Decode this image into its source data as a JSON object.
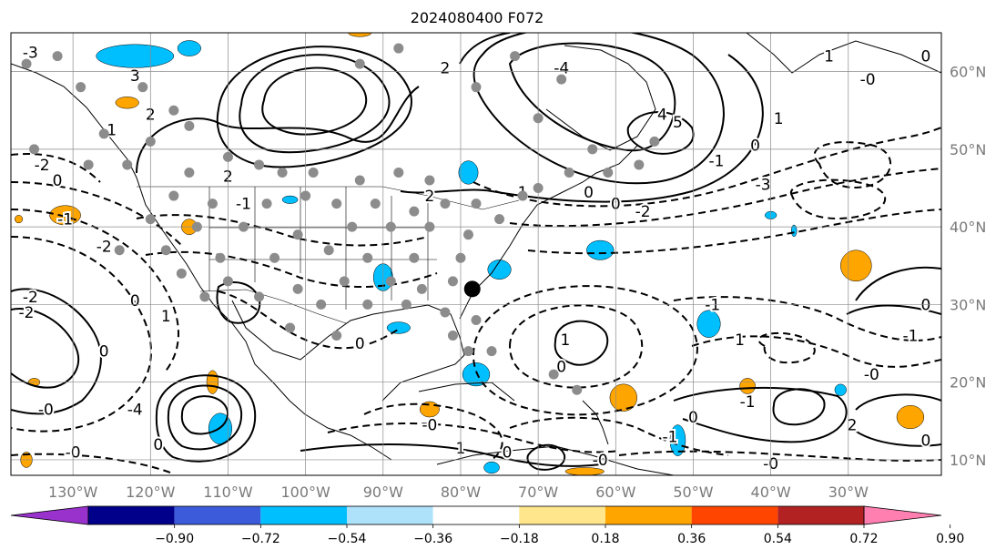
{
  "title": "2024080400 F072",
  "map": {
    "lon_range": [
      -138,
      -18
    ],
    "lat_range": [
      8,
      65
    ],
    "lon_ticks": [
      {
        "value": -130,
        "label": "130°W"
      },
      {
        "value": -120,
        "label": "120°W"
      },
      {
        "value": -110,
        "label": "110°W"
      },
      {
        "value": -100,
        "label": "100°W"
      },
      {
        "value": -90,
        "label": "90°W"
      },
      {
        "value": -80,
        "label": "80°W"
      },
      {
        "value": -70,
        "label": "70°W"
      },
      {
        "value": -60,
        "label": "60°W"
      },
      {
        "value": -50,
        "label": "50°W"
      },
      {
        "value": -40,
        "label": "40°W"
      },
      {
        "value": -30,
        "label": "30°W"
      }
    ],
    "lat_ticks": [
      {
        "value": 10,
        "label": "10°N"
      },
      {
        "value": 20,
        "label": "20°N"
      },
      {
        "value": 30,
        "label": "30°N"
      },
      {
        "value": 40,
        "label": "40°N"
      },
      {
        "value": 50,
        "label": "50°N"
      },
      {
        "value": 60,
        "label": "60°N"
      }
    ],
    "grid": true,
    "contour_labels": [
      {
        "text": "-3",
        "lon": -135.5,
        "lat": 62.5
      },
      {
        "text": "3",
        "lon": -122,
        "lat": 59.5
      },
      {
        "text": "2",
        "lon": -120,
        "lat": 54.5
      },
      {
        "text": "1",
        "lon": -125,
        "lat": 52.5
      },
      {
        "text": "-2",
        "lon": -134,
        "lat": 48
      },
      {
        "text": "0",
        "lon": -132,
        "lat": 46
      },
      {
        "text": "-1",
        "lon": -131,
        "lat": 41
      },
      {
        "text": "-2",
        "lon": -126,
        "lat": 37.5
      },
      {
        "text": "2",
        "lon": -110,
        "lat": 46.5
      },
      {
        "text": "-1",
        "lon": -108,
        "lat": 43
      },
      {
        "text": "0",
        "lon": -122,
        "lat": 30.5
      },
      {
        "text": "1",
        "lon": -118,
        "lat": 28.5
      },
      {
        "text": "-2",
        "lon": -135.5,
        "lat": 31
      },
      {
        "text": "-2",
        "lon": -136,
        "lat": 29
      },
      {
        "text": "0",
        "lon": -126,
        "lat": 24
      },
      {
        "text": "-4",
        "lon": -122,
        "lat": 16.5
      },
      {
        "text": "0",
        "lon": -119,
        "lat": 12
      },
      {
        "text": "-0",
        "lon": -133.5,
        "lat": 16.5
      },
      {
        "text": "-0",
        "lon": -130,
        "lat": 11
      },
      {
        "text": "0",
        "lon": -93,
        "lat": 25
      },
      {
        "text": "2",
        "lon": -82,
        "lat": 60.5
      },
      {
        "text": "-4",
        "lon": -67,
        "lat": 60.5
      },
      {
        "text": "4",
        "lon": -54,
        "lat": 54.5
      },
      {
        "text": "5",
        "lon": -52,
        "lat": 53.5
      },
      {
        "text": "2",
        "lon": -84,
        "lat": 44
      },
      {
        "text": "1",
        "lon": -72,
        "lat": 44.5
      },
      {
        "text": "0",
        "lon": -63.5,
        "lat": 44.5
      },
      {
        "text": "0",
        "lon": -60,
        "lat": 43
      },
      {
        "text": "-2",
        "lon": -56.5,
        "lat": 42
      },
      {
        "text": "1",
        "lon": -39,
        "lat": 54
      },
      {
        "text": "0",
        "lon": -42,
        "lat": 50.5
      },
      {
        "text": "-1",
        "lon": -47,
        "lat": 48.5
      },
      {
        "text": "-3",
        "lon": -41,
        "lat": 45.5
      },
      {
        "text": "1",
        "lon": -32.5,
        "lat": 62
      },
      {
        "text": "-0",
        "lon": -27.5,
        "lat": 59
      },
      {
        "text": "0",
        "lon": -20,
        "lat": 62
      },
      {
        "text": "1",
        "lon": -66.5,
        "lat": 25.5
      },
      {
        "text": "0",
        "lon": -67,
        "lat": 22
      },
      {
        "text": "-0",
        "lon": -84,
        "lat": 14.5
      },
      {
        "text": "1",
        "lon": -80,
        "lat": 11.5
      },
      {
        "text": "0",
        "lon": -74,
        "lat": 11
      },
      {
        "text": "-0",
        "lon": -62,
        "lat": 10
      },
      {
        "text": "-1",
        "lon": -53,
        "lat": 13
      },
      {
        "text": "0",
        "lon": -50,
        "lat": 15.5
      },
      {
        "text": "-1",
        "lon": -43,
        "lat": 17.5
      },
      {
        "text": "-0",
        "lon": -40,
        "lat": 9.5
      },
      {
        "text": "-1",
        "lon": -47.5,
        "lat": 30
      },
      {
        "text": "1",
        "lon": -44,
        "lat": 25.5
      },
      {
        "text": "-1",
        "lon": -22,
        "lat": 26
      },
      {
        "text": "-0",
        "lon": -27,
        "lat": 21
      },
      {
        "text": "0",
        "lon": -20,
        "lat": 30
      },
      {
        "text": "2",
        "lon": -29.5,
        "lat": 14.5
      },
      {
        "text": "0",
        "lon": -20,
        "lat": 12.5
      }
    ],
    "station_markers": {
      "gray": [
        [
          -136,
          61
        ],
        [
          -132,
          62
        ],
        [
          -129,
          58
        ],
        [
          -121,
          58
        ],
        [
          -117,
          55
        ],
        [
          -115,
          53
        ],
        [
          -120,
          51
        ],
        [
          -126,
          52
        ],
        [
          -135,
          50
        ],
        [
          -128,
          48
        ],
        [
          -123,
          48
        ],
        [
          -115,
          47
        ],
        [
          -110,
          49
        ],
        [
          -106,
          48
        ],
        [
          -103,
          47
        ],
        [
          -99,
          47
        ],
        [
          -93,
          46
        ],
        [
          -88,
          47
        ],
        [
          -84,
          46
        ],
        [
          -117,
          44
        ],
        [
          -112,
          43
        ],
        [
          -105,
          43
        ],
        [
          -100,
          44
        ],
        [
          -96,
          43
        ],
        [
          -91,
          43
        ],
        [
          -86,
          42
        ],
        [
          -82,
          43
        ],
        [
          -78,
          43
        ],
        [
          -72,
          44
        ],
        [
          -120,
          41
        ],
        [
          -114,
          40
        ],
        [
          -108,
          40
        ],
        [
          -101,
          39
        ],
        [
          -94,
          40
        ],
        [
          -89,
          40
        ],
        [
          -84,
          40
        ],
        [
          -79,
          39
        ],
        [
          -75,
          41
        ],
        [
          -124,
          37
        ],
        [
          -118,
          37
        ],
        [
          -111,
          36
        ],
        [
          -104,
          36
        ],
        [
          -97,
          37
        ],
        [
          -92,
          36
        ],
        [
          -86,
          36
        ],
        [
          -80,
          36
        ],
        [
          -116,
          34
        ],
        [
          -110,
          33
        ],
        [
          -101,
          32
        ],
        [
          -95,
          33
        ],
        [
          -89,
          33
        ],
        [
          -85,
          32
        ],
        [
          -81,
          33
        ],
        [
          -113,
          31
        ],
        [
          -106,
          31
        ],
        [
          -98,
          30
        ],
        [
          -92,
          30
        ],
        [
          -87,
          30
        ],
        [
          -82,
          29
        ],
        [
          -78,
          28
        ],
        [
          -102,
          27
        ],
        [
          -96,
          26
        ],
        [
          -81,
          26
        ],
        [
          -79,
          24
        ],
        [
          -76,
          24
        ],
        [
          -68,
          21
        ],
        [
          -65,
          19
        ],
        [
          -70,
          45
        ],
        [
          -66,
          47
        ],
        [
          -61,
          47
        ],
        [
          -57,
          48
        ],
        [
          -55,
          51
        ],
        [
          -63,
          50
        ],
        [
          -70,
          54
        ],
        [
          -78,
          58
        ],
        [
          -73,
          62
        ],
        [
          -67,
          59
        ],
        [
          -88,
          63
        ],
        [
          -93,
          61
        ]
      ],
      "black": [
        [
          -78.5,
          32
        ]
      ]
    },
    "anomaly_regions": [
      {
        "color": "#00bfff",
        "lon": -115,
        "lat": 63,
        "w": 3,
        "h": 2
      },
      {
        "color": "#00bfff",
        "lon": -122,
        "lat": 62,
        "w": 10,
        "h": 3
      },
      {
        "color": "#ffa500",
        "lon": -123,
        "lat": 56,
        "w": 3,
        "h": 1.5
      },
      {
        "color": "#ffa500",
        "lon": -93,
        "lat": 65,
        "w": 3,
        "h": 1
      },
      {
        "color": "#ffa500",
        "lon": -131,
        "lat": 41.5,
        "w": 4,
        "h": 2.5
      },
      {
        "color": "#ffa500",
        "lon": -137,
        "lat": 41,
        "w": 1,
        "h": 1
      },
      {
        "color": "#ffa500",
        "lon": -115,
        "lat": 40,
        "w": 2,
        "h": 2
      },
      {
        "color": "#00bfff",
        "lon": -102,
        "lat": 43.5,
        "w": 2,
        "h": 1
      },
      {
        "color": "#00bfff",
        "lon": -79,
        "lat": 47,
        "w": 2.5,
        "h": 3
      },
      {
        "color": "#00bfff",
        "lon": -90,
        "lat": 33.5,
        "w": 2.5,
        "h": 3.5
      },
      {
        "color": "#00bfff",
        "lon": -88,
        "lat": 27,
        "w": 3,
        "h": 1.5
      },
      {
        "color": "#00bfff",
        "lon": -75,
        "lat": 34.5,
        "w": 3,
        "h": 2.5
      },
      {
        "color": "#00bfff",
        "lon": -78,
        "lat": 21,
        "w": 3.5,
        "h": 3
      },
      {
        "color": "#00bfff",
        "lon": -62,
        "lat": 37,
        "w": 3.5,
        "h": 2.5
      },
      {
        "color": "#00bfff",
        "lon": -40,
        "lat": 41.5,
        "w": 1.5,
        "h": 1
      },
      {
        "color": "#00bfff",
        "lon": -37,
        "lat": 39.5,
        "w": 0.7,
        "h": 1.5
      },
      {
        "color": "#00bfff",
        "lon": -48,
        "lat": 27.5,
        "w": 3,
        "h": 3.5
      },
      {
        "color": "#00bfff",
        "lon": -111,
        "lat": 14,
        "w": 3,
        "h": 4
      },
      {
        "color": "#00bfff",
        "lon": -52,
        "lat": 12.5,
        "w": 2,
        "h": 4
      },
      {
        "color": "#00bfff",
        "lon": -76,
        "lat": 9,
        "w": 2,
        "h": 1.5
      },
      {
        "color": "#00bfff",
        "lon": -31,
        "lat": 19,
        "w": 1.5,
        "h": 1.5
      },
      {
        "color": "#ffa500",
        "lon": -29,
        "lat": 35,
        "w": 4,
        "h": 4
      },
      {
        "color": "#ffa500",
        "lon": -112,
        "lat": 20,
        "w": 1.5,
        "h": 3
      },
      {
        "color": "#ffa500",
        "lon": -84,
        "lat": 16.5,
        "w": 2.5,
        "h": 2
      },
      {
        "color": "#ffa500",
        "lon": -59,
        "lat": 18,
        "w": 3.5,
        "h": 3.5
      },
      {
        "color": "#ffa500",
        "lon": -43,
        "lat": 19.5,
        "w": 2,
        "h": 2
      },
      {
        "color": "#ffa500",
        "lon": -22,
        "lat": 15.5,
        "w": 3.5,
        "h": 3
      },
      {
        "color": "#ffa500",
        "lon": -64,
        "lat": 8.5,
        "w": 5,
        "h": 1
      },
      {
        "color": "#ffa500",
        "lon": -136,
        "lat": 10,
        "w": 1.5,
        "h": 2
      },
      {
        "color": "#ffa500",
        "lon": -135,
        "lat": 20,
        "w": 1.5,
        "h": 1
      }
    ]
  },
  "colorbar": {
    "colors": [
      "#9932cc",
      "#00008b",
      "#3b5bdb",
      "#00bfff",
      "#aee1fa",
      "#ffffff",
      "#ffe68c",
      "#ffa500",
      "#ff4500",
      "#b22222",
      "#ff7fb0"
    ],
    "ticks": [
      "−0.90",
      "−0.72",
      "−0.54",
      "−0.36",
      "−0.18",
      "0.18",
      "0.36",
      "0.54",
      "0.72",
      "0.90"
    ]
  }
}
